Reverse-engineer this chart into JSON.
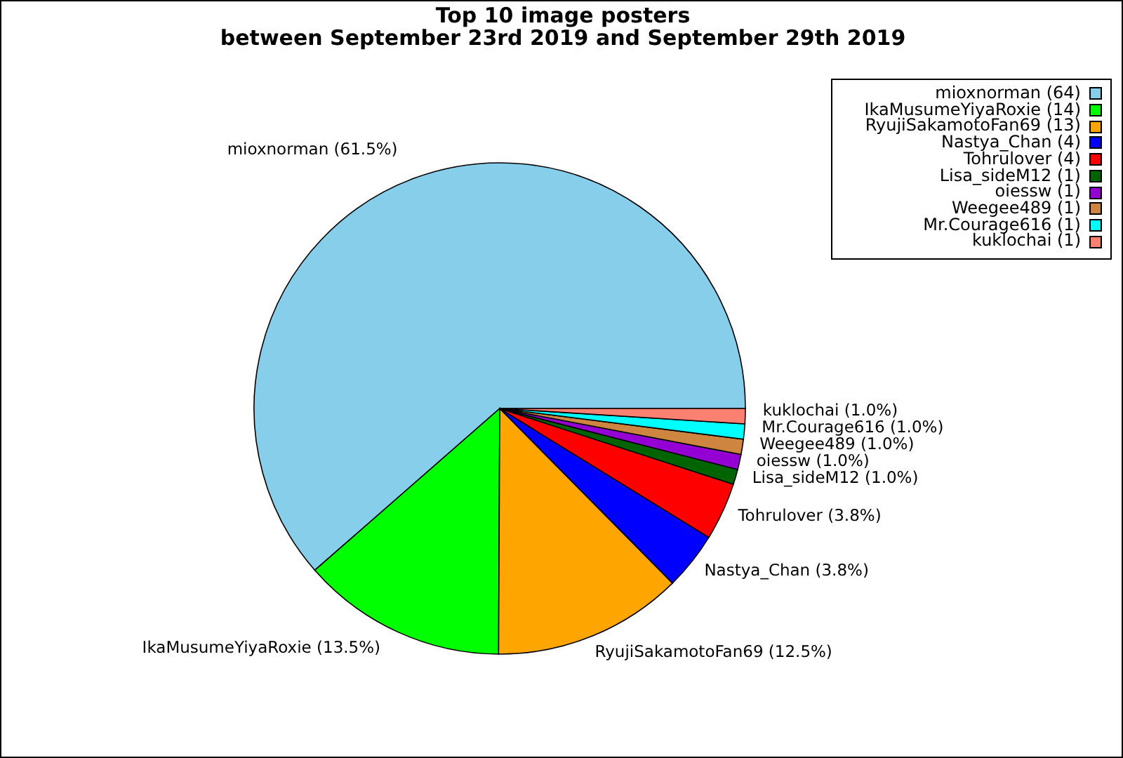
{
  "chart_data": {
    "type": "pie",
    "title": "Top 10 image posters\nbetween September 23rd 2019 and September 29th 2019",
    "categories": [
      "mioxnorman (64)",
      "IkaMusumeYiyaRoxie (14)",
      "RyujiSakamotoFan69 (13)",
      "Nastya_Chan (4)",
      "Tohrulover (4)",
      "Lisa_sideM12 (1)",
      "oiessw (1)",
      "Weegee489 (1)",
      "Mr.Courage616 (1)",
      "kuklochai (1)"
    ],
    "values": [
      61.5,
      13.5,
      12.5,
      3.8,
      3.8,
      1.0,
      1.0,
      1.0,
      1.0,
      1.0
    ],
    "colors": [
      "#87ceeb",
      "#00ff00",
      "#ffa500",
      "#0000ff",
      "#ff0000",
      "#006400",
      "#9400d3",
      "#cd853f",
      "#00ffff",
      "#fa8072"
    ],
    "value_labels": [
      "mioxnorman (61.5%)",
      "IkaMusumeYiyaRoxie (13.5%)",
      "RyujiSakamotoFan69 (12.5%)",
      "Nastya_Chan (3.8%)",
      "Tohrulover (3.8%)",
      "Lisa_sideM12 (1.0%)",
      "oiessw (1.0%)",
      "Weegee489 (1.0%)",
      "Mr.Courage616 (1.0%)",
      "kuklochai (1.0%)"
    ],
    "legend": "top right"
  }
}
